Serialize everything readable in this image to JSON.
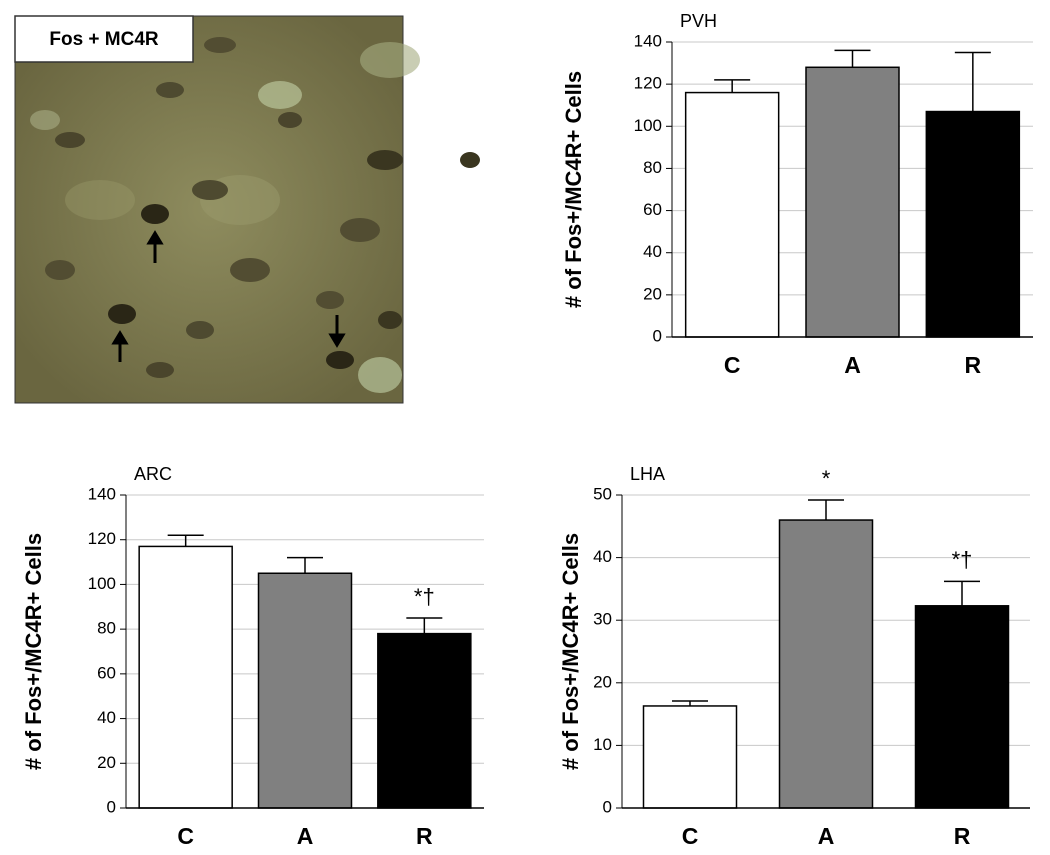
{
  "image": {
    "label": "Fos + MC4R"
  },
  "chart_data": [
    {
      "type": "bar",
      "title": "PVH",
      "y_label": "# of Fos+/MC4R+ Cells",
      "categories": [
        "C",
        "A",
        "R"
      ],
      "values": [
        116,
        128,
        107
      ],
      "errors": [
        6,
        8,
        28
      ],
      "annotations": [
        null,
        null,
        null
      ],
      "colors": [
        "#ffffff",
        "#808080",
        "#000000"
      ],
      "ylim": [
        0,
        140
      ],
      "yticks": [
        0,
        20,
        40,
        60,
        80,
        100,
        120,
        140
      ],
      "grid": true
    },
    {
      "type": "bar",
      "title": "ARC",
      "y_label": "# of Fos+/MC4R+ Cells",
      "categories": [
        "C",
        "A",
        "R"
      ],
      "values": [
        117,
        105,
        78
      ],
      "errors": [
        5,
        7,
        7
      ],
      "annotations": [
        null,
        null,
        "*†"
      ],
      "colors": [
        "#ffffff",
        "#808080",
        "#000000"
      ],
      "ylim": [
        0,
        140
      ],
      "yticks": [
        0,
        20,
        40,
        60,
        80,
        100,
        120,
        140
      ],
      "grid": true
    },
    {
      "type": "bar",
      "title": "LHA",
      "y_label": "# of Fos+/MC4R+ Cells",
      "categories": [
        "C",
        "A",
        "R"
      ],
      "values": [
        16.3,
        46,
        32.3
      ],
      "errors": [
        0.8,
        3.2,
        3.9
      ],
      "annotations": [
        null,
        "*",
        "*†"
      ],
      "colors": [
        "#ffffff",
        "#808080",
        "#000000"
      ],
      "ylim": [
        0,
        50
      ],
      "yticks": [
        0,
        10,
        20,
        30,
        40,
        50
      ],
      "grid": true
    }
  ]
}
